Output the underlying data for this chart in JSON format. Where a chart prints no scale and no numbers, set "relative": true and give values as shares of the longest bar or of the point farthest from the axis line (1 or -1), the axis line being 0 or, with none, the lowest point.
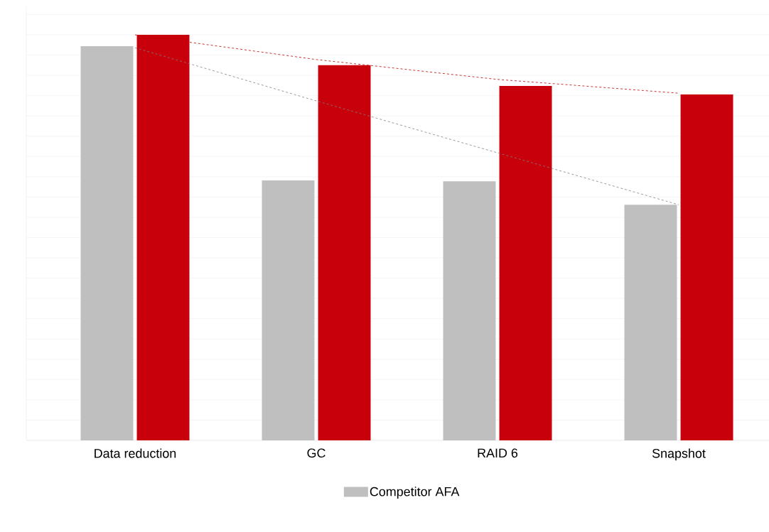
{
  "chart_data": {
    "type": "bar",
    "relative": true,
    "grid": "y",
    "legend": "bottom",
    "categories": [
      "Data reduction",
      "GC",
      "RAID 6",
      "Snapshot"
    ],
    "series": [
      {
        "name": "Competitor AFA",
        "color": "#bfbfbf",
        "values": [
          0.972,
          0.641,
          0.639,
          0.581
        ]
      },
      {
        "color": "#c7000b",
        "values": [
          1,
          0.925,
          0.874,
          0.853
        ]
      },
      {
        "type": "line",
        "line_style": "dashed",
        "color": "#808080",
        "values": [
          0.968,
          0.837,
          0.709,
          0.581
        ]
      },
      {
        "type": "line",
        "line_style": "dashed",
        "color": "#c00000",
        "values": [
          1,
          0.939,
          0.89,
          0.856
        ]
      }
    ]
  }
}
